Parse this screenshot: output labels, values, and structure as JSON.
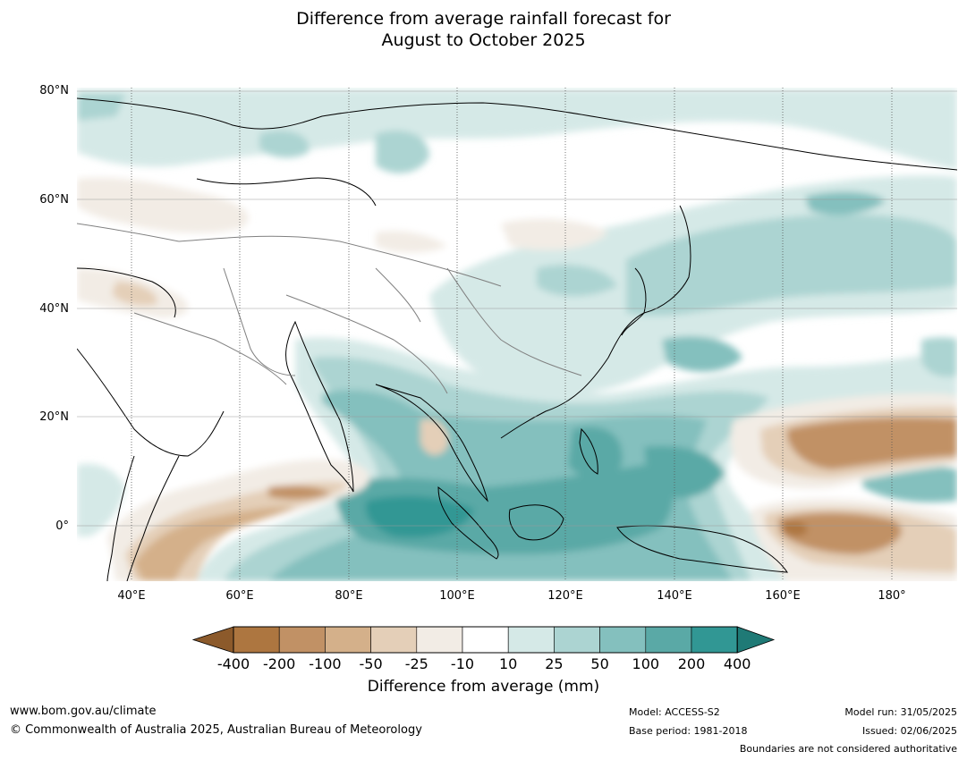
{
  "title": {
    "line1": "Difference from average rainfall forecast for",
    "line2": "August to October 2025"
  },
  "map": {
    "lat_labels": [
      "80°N",
      "60°N",
      "40°N",
      "20°N",
      "0°"
    ],
    "lon_labels": [
      "40°E",
      "60°E",
      "80°E",
      "100°E",
      "120°E",
      "140°E",
      "160°E",
      "180°"
    ],
    "land_color": "#ffffff",
    "coastline_color": "#000000",
    "border_color": "#808080"
  },
  "legend": {
    "ticks": [
      "-400",
      "-200",
      "-100",
      "-50",
      "-25",
      "-10",
      "10",
      "25",
      "50",
      "100",
      "200",
      "400"
    ],
    "colors": [
      "#8c5a2b",
      "#ad7640",
      "#c19165",
      "#d4b08a",
      "#e4cfb8",
      "#f2ece5",
      "#ffffff",
      "#d5e9e7",
      "#acd4d2",
      "#84c0be",
      "#5aa9a6",
      "#319794",
      "#1f7a76"
    ],
    "label": "Difference from average (mm)"
  },
  "footer": {
    "website": "www.bom.gov.au/climate",
    "copyright": "© Commonwealth of Australia 2025, Australian Bureau of Meteorology",
    "model": "Model: ACCESS-S2",
    "base_period": "Base period: 1981-2018",
    "model_run": "Model run: 31/05/2025",
    "issued": "Issued: 02/06/2025",
    "disclaimer": "Boundaries are not considered authoritative"
  }
}
